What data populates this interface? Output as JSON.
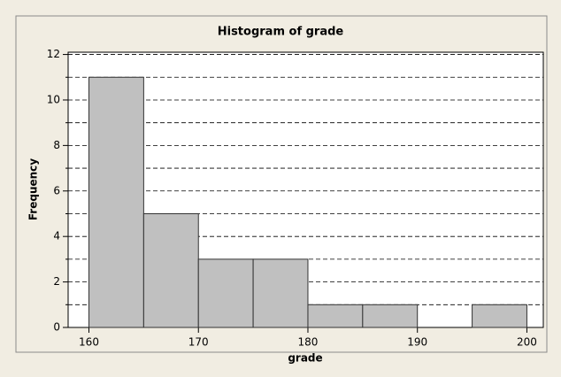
{
  "chart_data": {
    "type": "histogram",
    "title": "Histogram of grade",
    "xlabel": "grade",
    "ylabel": "Frequency",
    "bins": [
      160,
      165,
      170,
      175,
      180,
      185,
      190,
      195,
      200
    ],
    "values": [
      11,
      5,
      3,
      3,
      1,
      1,
      0,
      1
    ],
    "color": "#c0c0c0",
    "edgecolor": "#333333",
    "xlim": [
      158.1,
      201.5
    ],
    "xticks": [
      160,
      170,
      180,
      190,
      200
    ],
    "ylim": [
      0,
      12.1
    ],
    "yticks": [
      0,
      2,
      4,
      6,
      8,
      10,
      12
    ],
    "yticks_minor": [
      1,
      3,
      5,
      7,
      9,
      11
    ],
    "grid": true
  }
}
